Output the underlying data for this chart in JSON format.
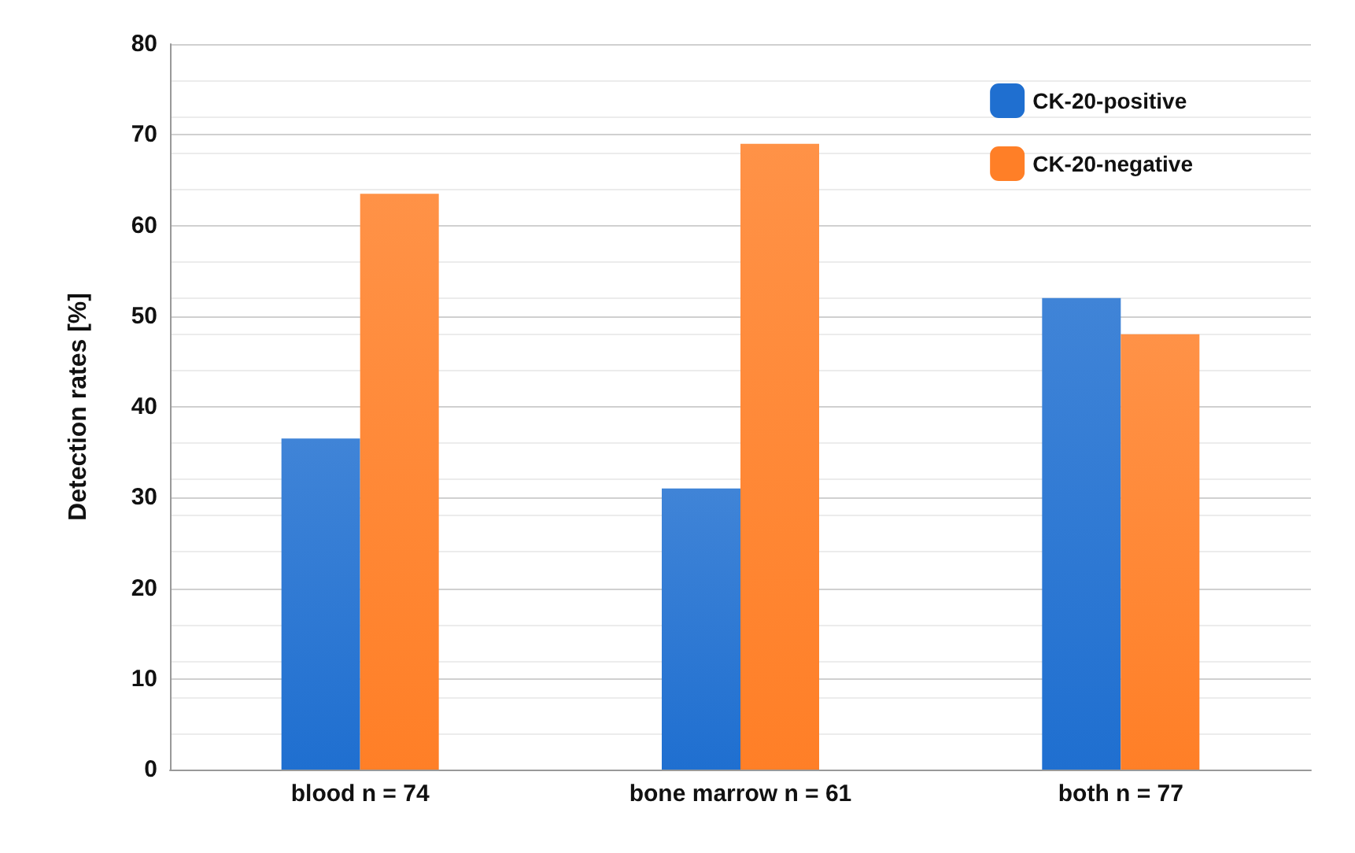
{
  "chart_data": {
    "type": "bar",
    "ylabel": "Detection rates [%]",
    "categories": [
      "blood n = 74",
      "bone marrow n = 61",
      "both n = 77"
    ],
    "series": [
      {
        "name": "CK-20-positive",
        "color": "#1f6fd0",
        "values": [
          36.5,
          31,
          52
        ]
      },
      {
        "name": "CK-20-negative",
        "color": "#ff7f27",
        "values": [
          63.5,
          69,
          48
        ]
      }
    ],
    "ylim": [
      0,
      80
    ],
    "yticks": [
      0,
      10,
      20,
      30,
      40,
      50,
      60,
      70,
      80
    ],
    "grid": "y",
    "legend": "top right"
  }
}
